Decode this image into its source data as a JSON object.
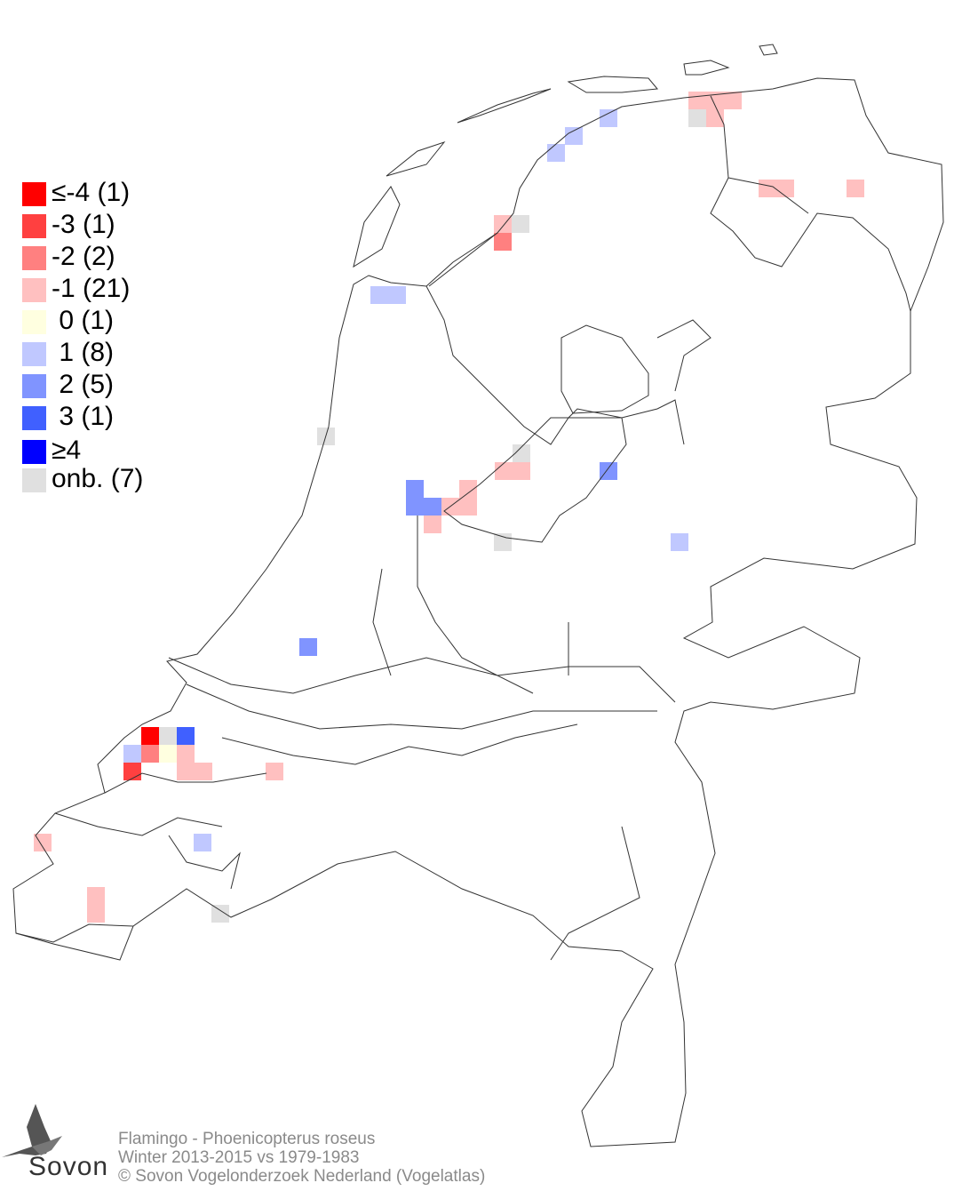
{
  "legend": [
    {
      "label": "≤-4 (1)",
      "color": "#ff0000"
    },
    {
      "label": "-3 (1)",
      "color": "#ff4040"
    },
    {
      "label": "-2 (2)",
      "color": "#ff8080"
    },
    {
      "label": "-1 (21)",
      "color": "#ffc0c0"
    },
    {
      "label": " 0 (1)",
      "color": "#ffffe0"
    },
    {
      "label": " 1 (8)",
      "color": "#c0c8ff"
    },
    {
      "label": " 2 (5)",
      "color": "#8094ff"
    },
    {
      "label": " 3 (1)",
      "color": "#4060ff"
    },
    {
      "label": "≥4",
      "color": "#0000ff"
    },
    {
      "label": "onb. (7)",
      "color": "#e0e0e0"
    }
  ],
  "footer": {
    "species": "Flamingo - Phoenicopterus roseus",
    "period": "Winter 2013-2015 vs 1979-1983",
    "copyright": "© Sovon Vogelonderzoek Nederland (Vogelatlas)"
  },
  "logo": {
    "text": "Sovon"
  },
  "map": {
    "outline_color": "#333333",
    "background": "#ffffff"
  }
}
